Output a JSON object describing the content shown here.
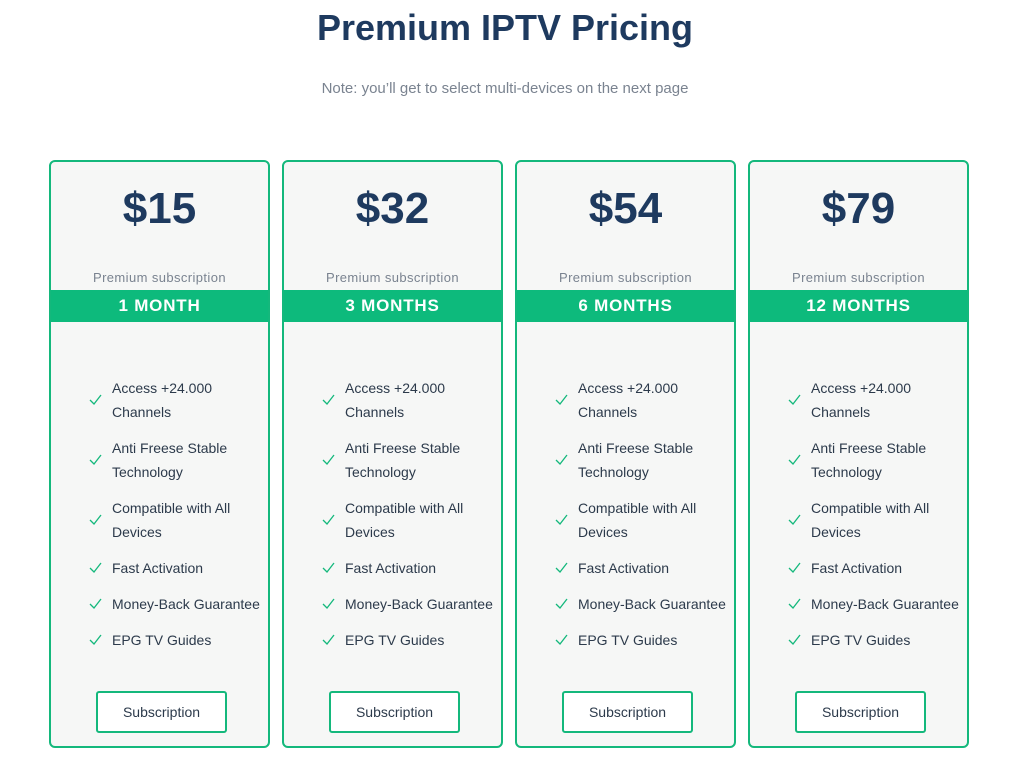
{
  "page": {
    "title": "Premium IPTV Pricing",
    "note": "Note: you’ll get to select multi-devices on the next page"
  },
  "colors": {
    "accent": "#0dba7c",
    "heading": "#1e3a5f",
    "muted": "#7a8390",
    "card_background": "#f6f7f6"
  },
  "plans": [
    {
      "price": "$15",
      "subscription_label": "Premium subscription",
      "period": "1 MONTH",
      "features": [
        "Access +24.000 Channels",
        "Anti Freese Stable Technology",
        "Compatible with All Devices",
        "Fast Activation",
        "Money-Back Guarantee",
        "EPG TV Guides"
      ],
      "button_label": "Subscription"
    },
    {
      "price": "$32",
      "subscription_label": "Premium subscription",
      "period": "3 MONTHS",
      "features": [
        "Access +24.000 Channels",
        "Anti Freese Stable Technology",
        "Compatible with All Devices",
        "Fast Activation",
        "Money-Back Guarantee",
        "EPG TV Guides"
      ],
      "button_label": "Subscription"
    },
    {
      "price": "$54",
      "subscription_label": "Premium subscription",
      "period": "6 MONTHS",
      "features": [
        "Access +24.000 Channels",
        "Anti Freese Stable Technology",
        "Compatible with All Devices",
        "Fast Activation",
        "Money-Back Guarantee",
        "EPG TV Guides"
      ],
      "button_label": "Subscription"
    },
    {
      "price": "$79",
      "subscription_label": "Premium subscription",
      "period": "12 MONTHS",
      "features": [
        "Access +24.000 Channels",
        "Anti Freese Stable Technology",
        "Compatible with All Devices",
        "Fast Activation",
        "Money-Back Guarantee",
        "EPG TV Guides"
      ],
      "button_label": "Subscription"
    }
  ]
}
